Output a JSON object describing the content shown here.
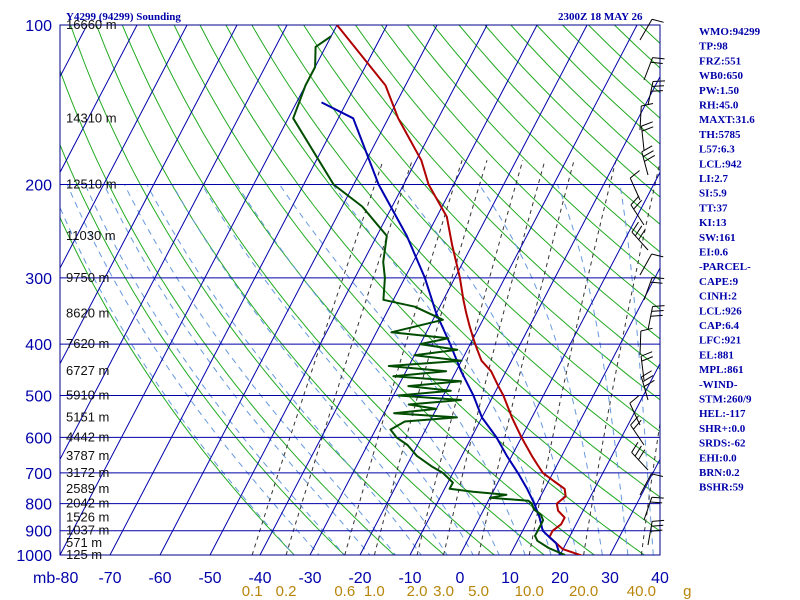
{
  "header": {
    "station": "Y4299 (94299) Sounding",
    "datetime": "2300Z 18 MAY 26"
  },
  "indices": [
    "WMO:94299",
    "TP:98",
    "FRZ:551",
    "WB0:650",
    "PW:1.50",
    "RH:45.0",
    "MAXT:31.6",
    "TH:5785",
    "L57:6.3",
    "LCL:942",
    "LI:2.7",
    "SI:5.9",
    "TT:37",
    "KI:13",
    "SW:161",
    "EI:0.6",
    "-PARCEL-",
    "CAPE:9",
    "CINH:2",
    "LCL:926",
    "CAP:6.4",
    "LFC:921",
    "EL:881",
    "MPL:861",
    "-WIND-",
    "STM:260/9",
    "HEL:-117",
    "SHR+:0.0",
    "SRDS:-62",
    "EHI:0.0",
    "BRN:0.2",
    "BSHR:59"
  ],
  "chart_data": {
    "type": "line",
    "title": "Y4299 (94299) Sounding",
    "xlabel": "",
    "ylabel": "mb",
    "xlim": [
      -80,
      40
    ],
    "ylim": [
      1000,
      100
    ],
    "grid": true,
    "pressure_ticks": [
      {
        "p": 100,
        "label": "100"
      },
      {
        "p": 200,
        "label": "200"
      },
      {
        "p": 300,
        "label": "300"
      },
      {
        "p": 400,
        "label": "400"
      },
      {
        "p": 500,
        "label": "500"
      },
      {
        "p": 600,
        "label": "600"
      },
      {
        "p": 700,
        "label": "700"
      },
      {
        "p": 800,
        "label": "800"
      },
      {
        "p": 900,
        "label": "900"
      },
      {
        "p": 1000,
        "label": "1000"
      }
    ],
    "temp_ticks": [
      {
        "t": -80,
        "label": "mb-80"
      },
      {
        "t": -70,
        "label": "-70"
      },
      {
        "t": -60,
        "label": "-60"
      },
      {
        "t": -50,
        "label": "-50"
      },
      {
        "t": -40,
        "label": "-40"
      },
      {
        "t": -30,
        "label": "-30"
      },
      {
        "t": -20,
        "label": "-20"
      },
      {
        "t": -10,
        "label": "-10"
      },
      {
        "t": 0,
        "label": "0"
      },
      {
        "t": 10,
        "label": "10"
      },
      {
        "t": 20,
        "label": "20"
      },
      {
        "t": 30,
        "label": "30"
      },
      {
        "t": 40,
        "label": "40"
      }
    ],
    "height_labels": [
      {
        "p": 100,
        "label": "16660 m"
      },
      {
        "p": 150,
        "label": "14310 m"
      },
      {
        "p": 200,
        "label": "12510 m"
      },
      {
        "p": 250,
        "label": "11030 m"
      },
      {
        "p": 300,
        "label": "9750 m"
      },
      {
        "p": 350,
        "label": "8620 m"
      },
      {
        "p": 400,
        "label": "7620 m"
      },
      {
        "p": 450,
        "label": "6727 m"
      },
      {
        "p": 500,
        "label": "5910 m"
      },
      {
        "p": 550,
        "label": "5151 m"
      },
      {
        "p": 600,
        "label": "4442 m"
      },
      {
        "p": 650,
        "label": "3787 m"
      },
      {
        "p": 700,
        "label": "3172 m"
      },
      {
        "p": 750,
        "label": "2589 m"
      },
      {
        "p": 800,
        "label": "2042 m"
      },
      {
        "p": 850,
        "label": "1526 m"
      },
      {
        "p": 900,
        "label": "1037 m"
      },
      {
        "p": 950,
        "label": "571 m"
      },
      {
        "p": 1000,
        "label": "125 m"
      }
    ],
    "mixing_ratio_labels": [
      {
        "w": 0.1,
        "label": "0.1"
      },
      {
        "w": 0.2,
        "label": "0.2"
      },
      {
        "w": 0.6,
        "label": "0.6"
      },
      {
        "w": 1.0,
        "label": "1.0"
      },
      {
        "w": 2.0,
        "label": "2.0"
      },
      {
        "w": 3.0,
        "label": "3.0"
      },
      {
        "w": 5.0,
        "label": "5.0"
      },
      {
        "w": 10.0,
        "label": "10.0"
      },
      {
        "w": 20.0,
        "label": "20.0"
      },
      {
        "w": 40.0,
        "label": "40.0"
      },
      {
        "w": 68.0,
        "label": "g"
      }
    ],
    "series": [
      {
        "color": "#b00000",
        "points": [
          [
            1010,
            25.5
          ],
          [
            1000,
            24
          ],
          [
            975,
            20
          ],
          [
            950,
            18
          ],
          [
            925,
            16
          ],
          [
            900,
            16
          ],
          [
            875,
            17
          ],
          [
            850,
            17
          ],
          [
            825,
            15
          ],
          [
            800,
            14
          ],
          [
            775,
            15
          ],
          [
            750,
            14
          ],
          [
            725,
            11
          ],
          [
            700,
            8
          ],
          [
            675,
            6
          ],
          [
            650,
            4
          ],
          [
            600,
            0
          ],
          [
            550,
            -4
          ],
          [
            500,
            -8
          ],
          [
            480,
            -10
          ],
          [
            450,
            -13
          ],
          [
            430,
            -16
          ],
          [
            410,
            -18
          ],
          [
            400,
            -19
          ],
          [
            390,
            -20
          ],
          [
            370,
            -22
          ],
          [
            350,
            -24
          ],
          [
            330,
            -26
          ],
          [
            300,
            -29
          ],
          [
            260,
            -34
          ],
          [
            230,
            -38
          ],
          [
            200,
            -45
          ],
          [
            180,
            -49
          ],
          [
            150,
            -58
          ],
          [
            130,
            -64
          ],
          [
            100,
            -80
          ]
        ]
      },
      {
        "color": "#0000b0",
        "points": [
          [
            1010,
            24.5
          ],
          [
            1000,
            20
          ],
          [
            975,
            19
          ],
          [
            950,
            18
          ],
          [
            925,
            16
          ],
          [
            900,
            14
          ],
          [
            850,
            12
          ],
          [
            800,
            9.5
          ],
          [
            750,
            6.5
          ],
          [
            700,
            3
          ],
          [
            650,
            -1
          ],
          [
            600,
            -5
          ],
          [
            550,
            -10
          ],
          [
            500,
            -14
          ],
          [
            450,
            -19
          ],
          [
            400,
            -24
          ],
          [
            350,
            -30
          ],
          [
            300,
            -36
          ],
          [
            250,
            -44
          ],
          [
            200,
            -55
          ],
          [
            150,
            -67
          ],
          [
            140,
            -75
          ]
        ]
      },
      {
        "color": "#004d00",
        "points": [
          [
            1000,
            21
          ],
          [
            970,
            17
          ],
          [
            940,
            14
          ],
          [
            920,
            13
          ],
          [
            900,
            13
          ],
          [
            880,
            13
          ],
          [
            860,
            13
          ],
          [
            840,
            12
          ],
          [
            820,
            10
          ],
          [
            800,
            9
          ],
          [
            790,
            8
          ],
          [
            780,
            0
          ],
          [
            770,
            3
          ],
          [
            760,
            -4
          ],
          [
            750,
            -9
          ],
          [
            730,
            -9
          ],
          [
            700,
            -12
          ],
          [
            680,
            -15
          ],
          [
            650,
            -19
          ],
          [
            620,
            -22
          ],
          [
            600,
            -25
          ],
          [
            580,
            -27
          ],
          [
            560,
            -25
          ],
          [
            550,
            -15
          ],
          [
            540,
            -28
          ],
          [
            530,
            -20
          ],
          [
            520,
            -26
          ],
          [
            510,
            -16
          ],
          [
            500,
            -29
          ],
          [
            490,
            -19
          ],
          [
            480,
            -28
          ],
          [
            470,
            -18
          ],
          [
            460,
            -32
          ],
          [
            450,
            -22
          ],
          [
            440,
            -34
          ],
          [
            430,
            -20
          ],
          [
            420,
            -30
          ],
          [
            410,
            -22
          ],
          [
            400,
            -30
          ],
          [
            390,
            -25
          ],
          [
            380,
            -37
          ],
          [
            360,
            -28
          ],
          [
            340,
            -35
          ],
          [
            330,
            -42
          ],
          [
            300,
            -44
          ],
          [
            280,
            -46
          ],
          [
            250,
            -48
          ],
          [
            220,
            -56
          ],
          [
            200,
            -64
          ],
          [
            150,
            -79
          ],
          [
            130,
            -80
          ],
          [
            120,
            -80
          ],
          [
            110,
            -82
          ],
          [
            105,
            -80
          ]
        ]
      }
    ]
  }
}
